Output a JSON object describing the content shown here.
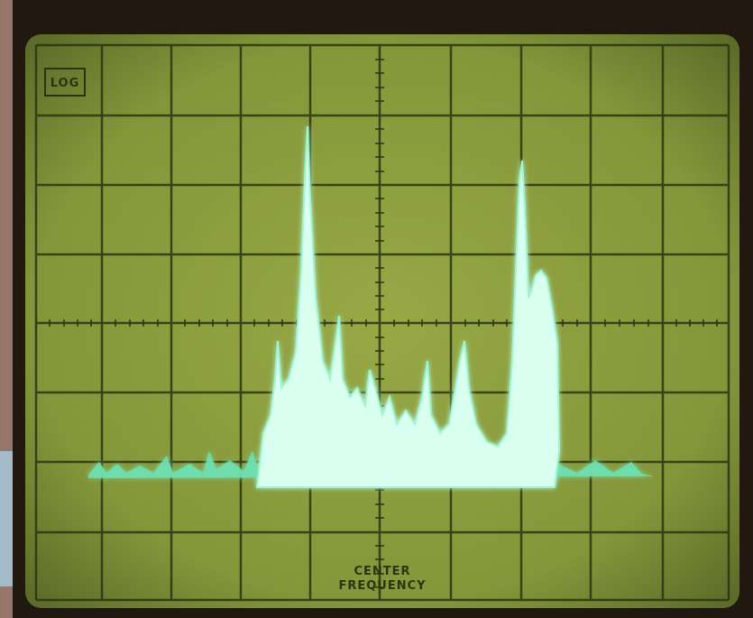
{
  "screen": {
    "label_top_left": "LOG",
    "bottom_label": [
      "CENTER",
      "FREQUENCY"
    ]
  }
}
